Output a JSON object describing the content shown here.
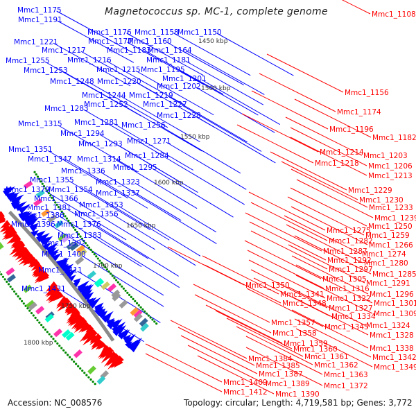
{
  "title": "Magnetococcus sp. MC-1, complete genome",
  "footer": {
    "accession": "Accession: NC_008576",
    "topology": "Topology: circular; Length: 4,719,581 bp; Genes: 3,772"
  },
  "colors": {
    "forward_strand": "#0000ff",
    "reverse_strand": "#ff0000",
    "backbone": "#888888",
    "gc_marker": "#008800"
  },
  "scale_ticks": [
    "1450 kbp",
    "1500 kbp",
    "1550 kbp",
    "1600 kbp",
    "1650 kbp",
    "1700 kbp",
    "1750 kbp",
    "1800 kbp"
  ],
  "forward_labels": [
    "Mmc1_1175",
    "Mmc1_1191",
    "Mmc1_1176",
    "Mmc1_1158",
    "Mmc1_1150",
    "Mmc1_1177",
    "Mmc1_1160",
    "Mmc1_1221",
    "Mmc1_1183",
    "Mmc1_1164",
    "Mmc1_1217",
    "Mmc1_1216",
    "Mmc1_1181",
    "Mmc1_1255",
    "Mmc1_1215",
    "Mmc1_1195",
    "Mmc1_1253",
    "Mmc1_1201",
    "Mmc1_1248",
    "Mmc1_1220",
    "Mmc1_1202",
    "Mmc1_1244",
    "Mmc1_1219",
    "Mmc1_1252",
    "Mmc1_1227",
    "Mmc1_1283",
    "Mmc1_1228",
    "Mmc1_1315",
    "Mmc1_1281",
    "Mmc1_1256",
    "Mmc1_1294",
    "Mmc1_1271",
    "Mmc1_1293",
    "Mmc1_1351",
    "Mmc1_1284",
    "Mmc1_1347",
    "Mmc1_1314",
    "Mmc1_1336",
    "Mmc1_1295",
    "Mmc1_1355",
    "Mmc1_1323",
    "Mmc1_1379",
    "Mmc1_1354",
    "Mmc1_1337",
    "Mmc1_1366",
    "Mmc1_1381",
    "Mmc1_1353",
    "Mmc1_1386",
    "Mmc1_1356",
    "Mmc1_1396",
    "Mmc1_1376",
    "Mmc1_1383",
    "Mmc1_1392",
    "Mmc1_1400",
    "Mmc1_1411",
    "Mmc1_1431"
  ],
  "reverse_labels": [
    "Mmc1_1108",
    "Mmc1_1156",
    "Mmc1_1174",
    "Mmc1_1196",
    "Mmc1_1182",
    "Mmc1_1214",
    "Mmc1_1203",
    "Mmc1_1218",
    "Mmc1_1206",
    "Mmc1_1213",
    "Mmc1_1229",
    "Mmc1_1230",
    "Mmc1_1233",
    "Mmc1_1239",
    "Mmc1_1250",
    "Mmc1_1275",
    "Mmc1_1259",
    "Mmc1_1282",
    "Mmc1_1266",
    "Mmc1_1287",
    "Mmc1_1274",
    "Mmc1_1292",
    "Mmc1_1280",
    "Mmc1_1297",
    "Mmc1_1285",
    "Mmc1_1305",
    "Mmc1_1291",
    "Mmc1_1350",
    "Mmc1_1316",
    "Mmc1_1341",
    "Mmc1_1296",
    "Mmc1_1322",
    "Mmc1_1348",
    "Mmc1_1301",
    "Mmc1_1327",
    "Mmc1_1334",
    "Mmc1_1309",
    "Mmc1_1357",
    "Mmc1_1345",
    "Mmc1_1324",
    "Mmc1_1358",
    "Mmc1_1328",
    "Mmc1_1359",
    "Mmc1_1360",
    "Mmc1_1338",
    "Mmc1_1384",
    "Mmc1_1361",
    "Mmc1_1342",
    "Mmc1_1362",
    "Mmc1_1385",
    "Mmc1_1349",
    "Mmc1_1387",
    "Mmc1_1363",
    "Mmc1_1409",
    "Mmc1_1389",
    "Mmc1_1372",
    "Mmc1_1412",
    "Mmc1_1390"
  ]
}
